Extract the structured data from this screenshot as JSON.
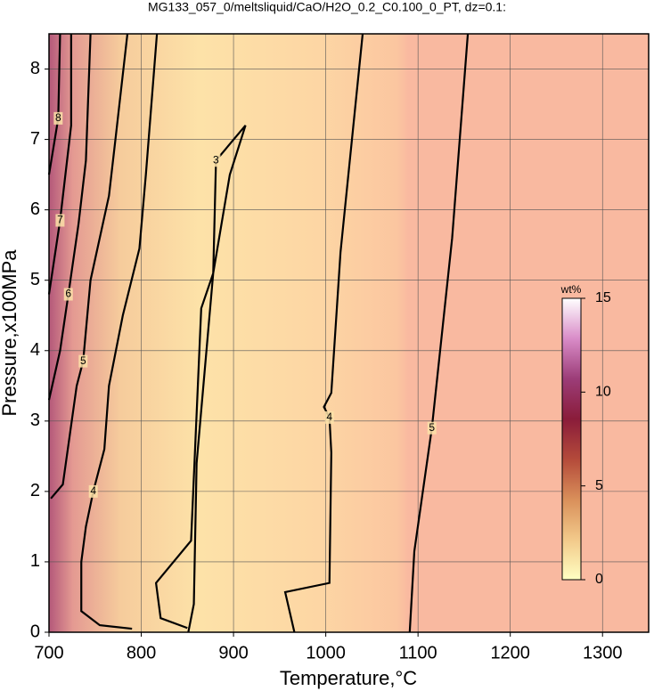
{
  "chart_data": {
    "type": "contour",
    "title": "MG133_057_0/meltsliquid/CaO/H2O_0.2_C0.100_0_PT, dz=0.1:",
    "xlabel": "Temperature,°C",
    "ylabel": "Pressure,x100MPa",
    "xlim": [
      700,
      1350
    ],
    "ylim": [
      0,
      8.5
    ],
    "xticks": [
      700,
      800,
      900,
      1000,
      1100,
      1200,
      1300
    ],
    "yticks": [
      0,
      1,
      2,
      3,
      4,
      5,
      6,
      7,
      8
    ],
    "grid": true,
    "contours": [
      {
        "level": 8,
        "x": [
          712,
          710,
          700
        ],
        "y": [
          8.5,
          7.3,
          6.5
        ]
      },
      {
        "level": 7,
        "x": [
          724,
          724,
          712,
          700
        ],
        "y": [
          8.5,
          7.2,
          5.85,
          4.8
        ]
      },
      {
        "level": 6,
        "x": [
          745,
          740,
          732,
          721,
          712,
          700
        ],
        "y": [
          8.5,
          6.7,
          5.8,
          4.8,
          4,
          3.3
        ]
      },
      {
        "level": 5,
        "x": [
          785,
          772,
          765,
          745,
          737,
          730,
          715,
          702
        ],
        "y": [
          8.5,
          7,
          6.2,
          5,
          3.85,
          3.5,
          2.1,
          1.9
        ]
      },
      {
        "level": 4,
        "x": [
          817,
          805,
          798,
          780,
          765,
          760,
          748,
          740,
          735,
          735,
          755,
          790
        ],
        "y": [
          8.5,
          6.5,
          5.45,
          4.5,
          3.5,
          2.6,
          2,
          1.5,
          1,
          0.3,
          0.1,
          0.05
        ]
      },
      {
        "level": 3,
        "x": [
          851,
          857,
          860,
          878,
          896,
          913,
          881,
          878,
          865,
          854,
          816,
          821,
          850
        ],
        "y": [
          0,
          0.4,
          2.4,
          5.1,
          6.5,
          7.2,
          6.7,
          5.1,
          4.6,
          1.3,
          0.7,
          0.2,
          0.06
        ]
      },
      {
        "level": 4,
        "x": [
          1040,
          1016,
          1006,
          998,
          1004,
          1006,
          1004,
          956,
          966
        ],
        "y": [
          8.5,
          5.4,
          3.4,
          3.2,
          3.05,
          2.55,
          0.7,
          0.57,
          0
        ]
      },
      {
        "level": 5,
        "x": [
          1154,
          1137,
          1115,
          1096,
          1091
        ],
        "y": [
          8.5,
          5.6,
          2.9,
          1.15,
          0
        ]
      }
    ],
    "colorbar": {
      "label": "wt%",
      "lim": [
        0,
        15
      ],
      "ticks": [
        0,
        5,
        10,
        15
      ],
      "colormap": [
        "#ffffc2",
        "#f2c98a",
        "#d98f5a",
        "#b44a3a",
        "#8a1c3a",
        "#9c3d78",
        "#d98cc8",
        "#ffffff"
      ]
    }
  }
}
